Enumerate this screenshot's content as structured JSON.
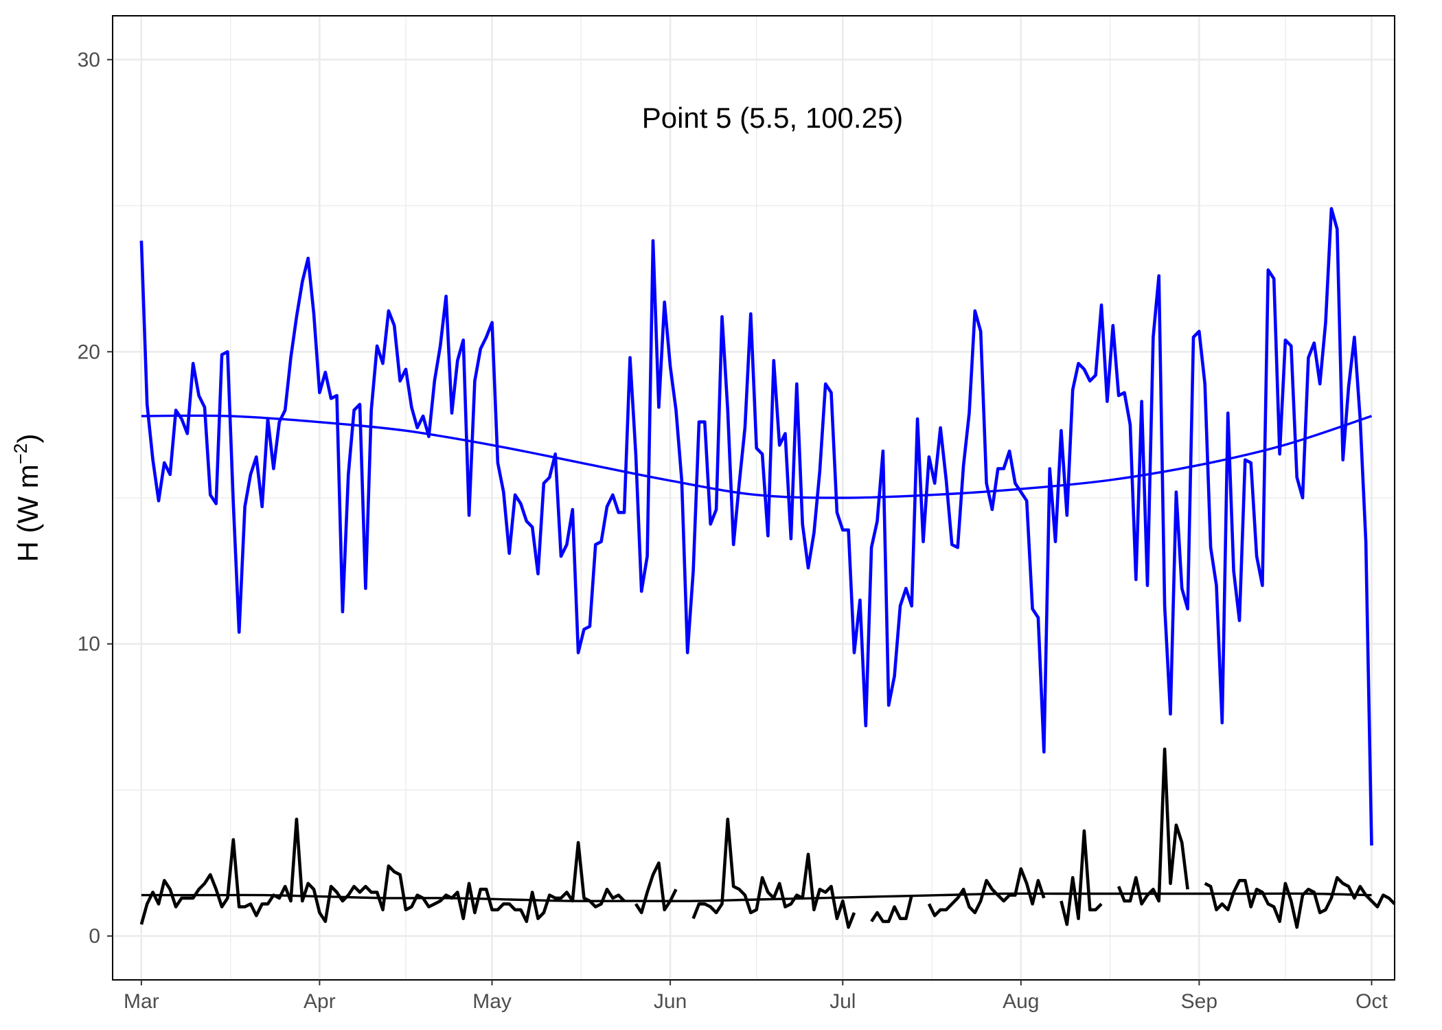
{
  "chart_data": {
    "type": "line",
    "title": "Point 5 (5.5, 100.25)",
    "ylabel": {
      "base": "H (W m",
      "exp": "−2",
      "close": ")"
    },
    "xlabel": "",
    "x_tick_labels": [
      "Mar",
      "Apr",
      "May",
      "Jun",
      "Jul",
      "Aug",
      "Sep",
      "Oct"
    ],
    "x_tick_dates": [
      "03-01",
      "04-01",
      "05-01",
      "06-01",
      "07-01",
      "08-01",
      "09-01",
      "10-01"
    ],
    "y_ticks": [
      0,
      10,
      20,
      30
    ],
    "ylim": [
      -1.5,
      31.5
    ],
    "xlim": [
      "02-24",
      "10-05"
    ],
    "grid": true,
    "legend": "none",
    "colors": {
      "series_main": "#0000ff",
      "series_secondary": "#000000",
      "grid": "#ebebeb",
      "panel_border": "#000000"
    },
    "series": [
      {
        "color": "#0000ff",
        "start_date": "03-01",
        "values": [
          23.8,
          18.2,
          16.3,
          14.9,
          16.2,
          15.8,
          18.0,
          17.7,
          17.2,
          19.6,
          18.5,
          18.1,
          15.1,
          14.8,
          19.9,
          20.0,
          14.8,
          10.4,
          14.7,
          15.8,
          16.4,
          14.7,
          17.7,
          16.0,
          17.6,
          18.0,
          19.8,
          21.2,
          22.4,
          23.2,
          21.3,
          18.6,
          19.3,
          18.4,
          18.5,
          11.1,
          15.8,
          18.0,
          18.2,
          11.9,
          18.0,
          20.2,
          19.6,
          21.4,
          20.9,
          19.0,
          19.4,
          18.1,
          17.4,
          17.8,
          17.1,
          19.0,
          20.2,
          21.9,
          17.9,
          19.7,
          20.4,
          14.4,
          19.0,
          20.1,
          20.5,
          21.0,
          16.2,
          15.2,
          13.1,
          15.1,
          14.8,
          14.2,
          14.0,
          12.4,
          15.5,
          15.7,
          16.5,
          13.0,
          13.4,
          14.6,
          9.7,
          10.5,
          10.6,
          13.4,
          13.5,
          14.7,
          15.1,
          14.5,
          14.5,
          19.8,
          16.5,
          11.8,
          13.0,
          23.8,
          18.1,
          21.7,
          19.5,
          18.0,
          15.6,
          9.7,
          12.5,
          17.6,
          17.6,
          14.1,
          14.6,
          21.2,
          18.0,
          13.4,
          15.5,
          17.4,
          21.3,
          16.7,
          16.5,
          13.7,
          19.7,
          16.8,
          17.2,
          13.6,
          18.9,
          14.1,
          12.6,
          13.8,
          15.9,
          18.9,
          18.6,
          14.5,
          13.9,
          13.9,
          9.7,
          11.5,
          7.2,
          13.3,
          14.2,
          16.6,
          7.9,
          8.9,
          11.3,
          11.9,
          11.3,
          17.7,
          13.5,
          16.4,
          15.5,
          17.4,
          15.6,
          13.4,
          13.3,
          16.1,
          17.9,
          21.4,
          20.7,
          15.5,
          14.6,
          16.0,
          16.0,
          16.6,
          15.5,
          15.2,
          14.9,
          11.2,
          10.9,
          6.3,
          16.0,
          13.5,
          17.3,
          14.4,
          18.7,
          19.6,
          19.4,
          19.0,
          19.2,
          21.6,
          18.3,
          20.9,
          18.5,
          18.6,
          17.5,
          12.2,
          18.3,
          12.0,
          20.5,
          22.6,
          11.3,
          7.6,
          15.2,
          11.9,
          11.2,
          20.5,
          20.7,
          18.9,
          13.3,
          12.0,
          7.3,
          17.9,
          12.5,
          10.8,
          16.3,
          16.2,
          13.0,
          12.0,
          22.8,
          22.5,
          16.5,
          20.4,
          20.2,
          15.7,
          15.0,
          19.8,
          20.3,
          18.9,
          21.0,
          24.9,
          24.2,
          16.3,
          18.8,
          20.5,
          17.7,
          13.5,
          3.1
        ]
      },
      {
        "color": "#0000ff",
        "smooth": true,
        "start_date": "03-01",
        "values": [
          17.8,
          17.8,
          17.6,
          17.3,
          16.8,
          16.2,
          15.6,
          15.1,
          15.0,
          15.1,
          15.3,
          15.6,
          16.1,
          16.8,
          17.8
        ]
      },
      {
        "color": "#000000",
        "start_date": "03-01",
        "values": [
          0.4,
          1.1,
          1.5,
          1.1,
          1.9,
          1.6,
          1.0,
          1.3,
          1.3,
          1.3,
          1.6,
          1.8,
          2.1,
          1.6,
          1.0,
          1.3,
          3.3,
          1.0,
          1.0,
          1.1,
          0.7,
          1.1,
          1.1,
          1.4,
          1.3,
          1.7,
          1.2,
          4.0,
          1.2,
          1.8,
          1.6,
          0.8,
          0.5,
          1.7,
          1.5,
          1.2,
          1.4,
          1.7,
          1.5,
          1.7,
          1.5,
          1.5,
          0.9,
          2.4,
          2.2,
          2.1,
          0.9,
          1.0,
          1.4,
          1.3,
          1.0,
          1.1,
          1.2,
          1.4,
          1.3,
          1.5,
          0.6,
          1.8,
          0.8,
          1.6,
          1.6,
          0.9,
          0.9,
          1.1,
          1.1,
          0.9,
          0.9,
          0.5,
          1.5,
          0.6,
          0.8,
          1.4,
          1.3,
          1.3,
          1.5,
          1.2,
          3.2,
          1.3,
          1.2,
          1.0,
          1.1,
          1.6,
          1.3,
          1.4,
          1.2,
          null,
          1.1,
          0.8,
          1.5,
          2.1,
          2.5,
          0.9,
          1.2,
          1.6,
          null,
          null,
          0.6,
          1.1,
          1.1,
          1.0,
          0.8,
          1.1,
          4.0,
          1.7,
          1.6,
          1.4,
          0.8,
          0.9,
          2.0,
          1.5,
          1.3,
          1.8,
          1.0,
          1.1,
          1.4,
          1.3,
          2.8,
          0.9,
          1.6,
          1.5,
          1.7,
          0.6,
          1.2,
          0.3,
          0.8,
          null,
          null,
          0.5,
          0.8,
          0.5,
          0.5,
          1.0,
          0.6,
          0.6,
          1.4,
          null,
          null,
          1.1,
          0.7,
          0.9,
          0.9,
          1.1,
          1.3,
          1.6,
          1.0,
          0.8,
          1.2,
          1.9,
          1.6,
          1.4,
          1.2,
          1.4,
          1.4,
          2.3,
          1.8,
          1.1,
          1.9,
          1.3,
          null,
          null,
          1.2,
          0.4,
          2.0,
          0.6,
          3.6,
          0.9,
          0.9,
          1.1,
          null,
          null,
          1.7,
          1.2,
          1.2,
          2.0,
          1.1,
          1.4,
          1.6,
          1.2,
          6.4,
          1.8,
          3.8,
          3.2,
          1.6,
          null,
          null,
          1.8,
          1.7,
          0.9,
          1.1,
          0.9,
          1.5,
          1.9,
          1.9,
          1.0,
          1.6,
          1.5,
          1.1,
          1.0,
          0.5,
          1.8,
          1.2,
          0.3,
          1.4,
          1.6,
          1.5,
          0.8,
          0.9,
          1.3,
          2.0,
          1.8,
          1.7,
          1.3,
          1.7,
          1.4,
          1.2,
          1.0,
          1.4,
          1.3,
          1.1
        ]
      },
      {
        "color": "#000000",
        "smooth": true,
        "start_date": "03-01",
        "values": [
          1.4,
          1.4,
          1.4,
          1.35,
          1.3,
          1.3,
          1.25,
          1.2,
          1.2,
          1.2,
          1.25,
          1.3,
          1.35,
          1.4,
          1.45,
          1.45,
          1.45,
          1.45,
          1.45,
          1.45,
          1.4
        ]
      }
    ]
  }
}
